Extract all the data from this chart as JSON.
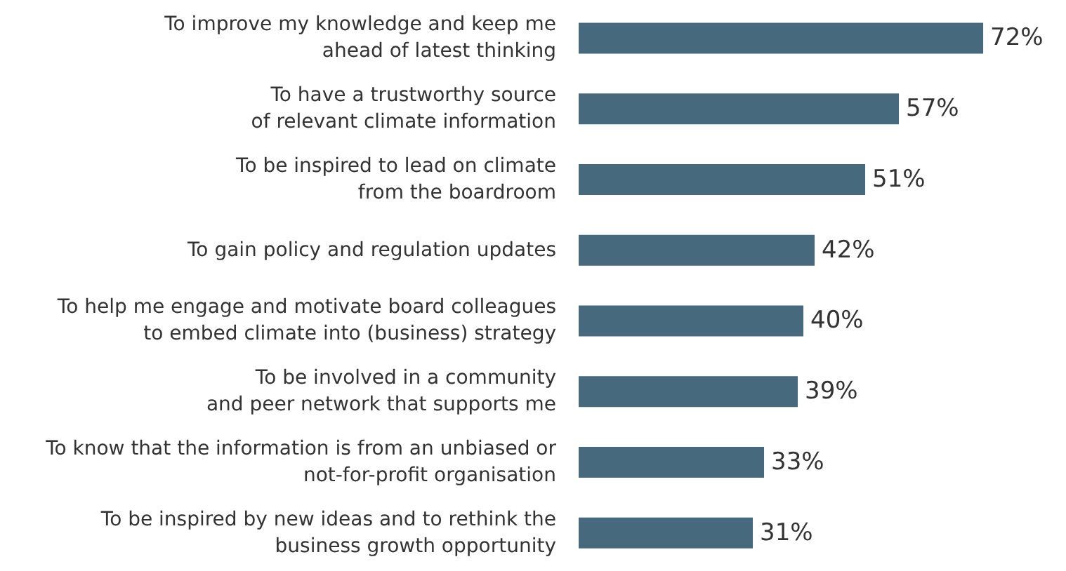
{
  "chart_data": {
    "type": "bar",
    "orientation": "horizontal",
    "categories": [
      "To improve my knowledge and keep me\nahead of latest thinking",
      "To have a trustworthy source\nof relevant climate information",
      "To be inspired to lead on climate\nfrom the boardroom",
      "To gain policy and regulation updates",
      "To help me engage and motivate board colleagues\nto embed climate into (business) strategy",
      "To be involved in a community\nand peer network that supports me",
      "To know that the information is from an unbiased or\nnot-for-profit organisation",
      "To be inspired by new ideas and to rethink the\nbusiness growth opportunity"
    ],
    "values": [
      72,
      57,
      51,
      42,
      40,
      39,
      33,
      31
    ],
    "value_labels": [
      "72%",
      "57%",
      "51%",
      "42%",
      "40%",
      "39%",
      "33%",
      "31%"
    ],
    "color": "#46697d"
  }
}
